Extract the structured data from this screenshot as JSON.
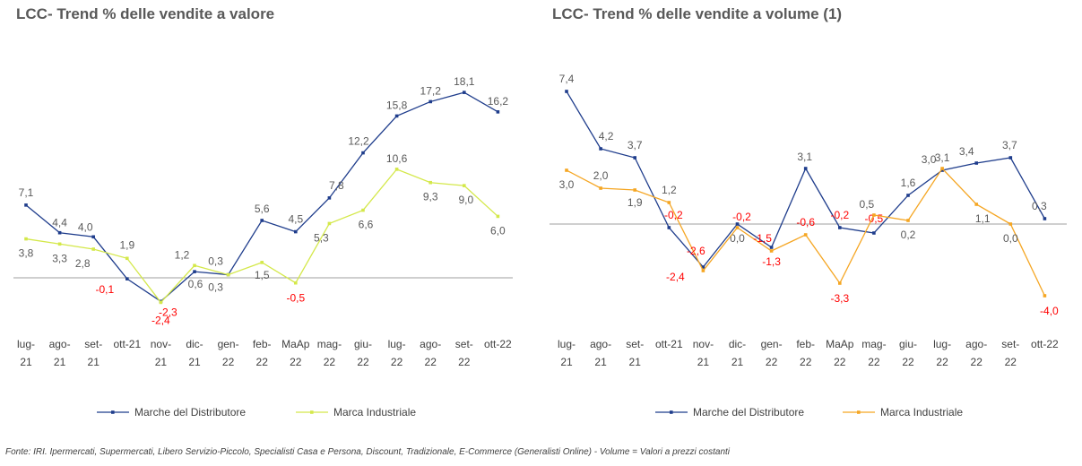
{
  "chart_data": [
    {
      "type": "line",
      "title": "LCC- Trend % delle vendite a valore",
      "categories": [
        [
          "lug-",
          "21"
        ],
        [
          "ago-",
          "21"
        ],
        [
          "set-",
          "21"
        ],
        [
          "ott-21"
        ],
        [
          "nov-",
          "21"
        ],
        [
          "dic-",
          "21"
        ],
        [
          "gen-",
          "22"
        ],
        [
          "feb-",
          "22"
        ],
        [
          "MaAp",
          "22"
        ],
        [
          "mag-",
          "22"
        ],
        [
          "giu-",
          "22"
        ],
        [
          "lug-",
          "22"
        ],
        [
          "ago-",
          "22"
        ],
        [
          "set-",
          "22"
        ],
        [
          "ott-22"
        ]
      ],
      "series": [
        {
          "name": "Marche del Distributore",
          "values": [
            7.1,
            4.4,
            4.0,
            -0.1,
            -2.3,
            0.6,
            0.3,
            5.6,
            4.5,
            7.8,
            12.2,
            15.8,
            17.2,
            18.1,
            16.2
          ],
          "labels": [
            "7,1",
            "4,4",
            "4,0",
            "-0,1",
            "-2,3",
            "0,6",
            "0,3",
            "5,6",
            "4,5",
            "7,8",
            "12,2",
            "15,8",
            "17,2",
            "18,1",
            "16,2"
          ],
          "color": "#1f3d8c"
        },
        {
          "name": "Marca Industriale",
          "values": [
            3.8,
            3.3,
            2.8,
            1.9,
            -2.4,
            1.2,
            0.3,
            1.5,
            -0.5,
            5.3,
            6.6,
            10.6,
            9.3,
            9.0,
            6.0
          ],
          "labels": [
            "3,8",
            "3,3",
            "2,8",
            "1,9",
            "-2,4",
            "1,2",
            "0,3",
            "1,5",
            "-0,5",
            "5,3",
            "6,6",
            "10,6",
            "9,3",
            "9,0",
            "6,0"
          ],
          "color": "#d4e84a"
        }
      ],
      "ylim": [
        -3.5,
        21
      ],
      "grid": false,
      "legend": "bottom",
      "negative_label_color": "#ff0000",
      "label_color": "#595959"
    },
    {
      "type": "line",
      "title": "LCC- Trend % delle vendite a volume (1)",
      "categories": [
        [
          "lug-",
          "21"
        ],
        [
          "ago-",
          "21"
        ],
        [
          "set-",
          "21"
        ],
        [
          "ott-21"
        ],
        [
          "nov-",
          "21"
        ],
        [
          "dic-",
          "21"
        ],
        [
          "gen-",
          "22"
        ],
        [
          "feb-",
          "22"
        ],
        [
          "MaAp",
          "22"
        ],
        [
          "mag-",
          "22"
        ],
        [
          "giu-",
          "22"
        ],
        [
          "lug-",
          "22"
        ],
        [
          "ago-",
          "22"
        ],
        [
          "set-",
          "22"
        ],
        [
          "ott-22"
        ]
      ],
      "series": [
        {
          "name": "Marche del Distributore",
          "values": [
            7.4,
            4.2,
            3.7,
            -0.2,
            -2.4,
            0.0,
            -1.3,
            3.1,
            -0.2,
            -0.5,
            1.6,
            3.0,
            3.4,
            3.7,
            0.3
          ],
          "labels": [
            "7,4",
            "4,2",
            "3,7",
            "-0,2",
            "-2,4",
            "0,0",
            "-1,3",
            "3,1",
            "-0,2",
            "-0,5",
            "1,6",
            "3,0",
            "3,4",
            "3,7",
            "0,3"
          ],
          "color": "#1f3d8c"
        },
        {
          "name": "Marca Industriale",
          "values": [
            3.0,
            2.0,
            1.9,
            1.2,
            -2.6,
            -0.2,
            -1.5,
            -0.6,
            -3.3,
            0.5,
            0.2,
            3.1,
            1.1,
            0.0,
            -4.0
          ],
          "labels": [
            "3,0",
            "2,0",
            "1,9",
            "1,2",
            "-2,6",
            "-0,2",
            "-1,5",
            "-0,6",
            "-3,3",
            "0,5",
            "0,2",
            "3,1",
            "1,1",
            "0,0",
            "-4,0"
          ],
          "color": "#f5a623"
        }
      ],
      "ylim": [
        -5,
        9
      ],
      "grid": false,
      "legend": "bottom",
      "negative_label_color": "#ff0000",
      "label_color": "#595959"
    }
  ],
  "footnote": "Fonte: IRI. Ipermercati, Supermercati, Libero Servizio-Piccolo, Specialisti Casa e Persona, Discount, Tradizionale, E-Commerce (Generalisti Online) -  Volume = Valori a prezzi costanti"
}
